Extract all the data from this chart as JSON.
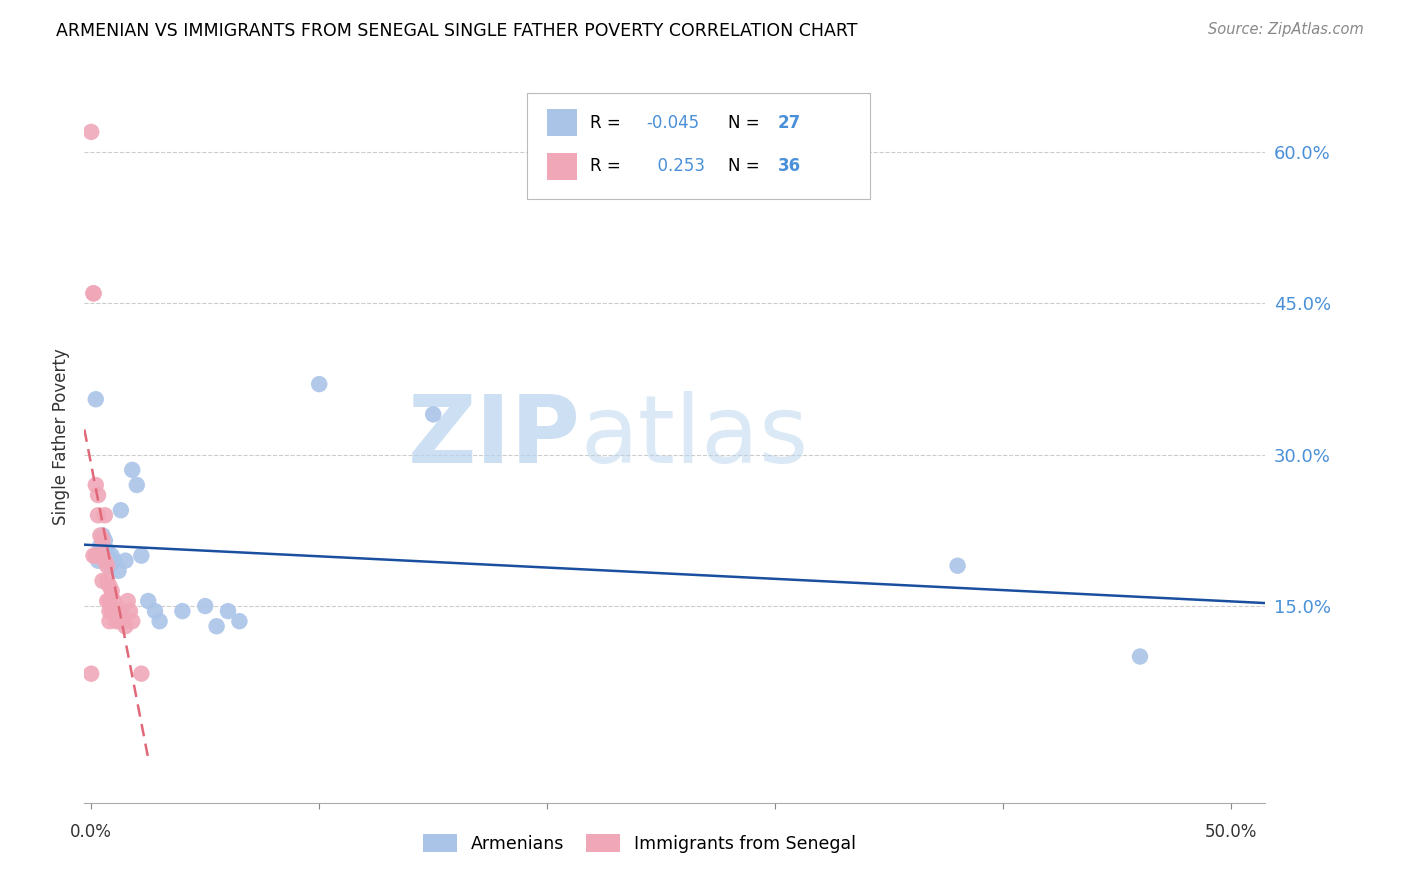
{
  "title": "ARMENIAN VS IMMIGRANTS FROM SENEGAL SINGLE FATHER POVERTY CORRELATION CHART",
  "source": "Source: ZipAtlas.com",
  "ylabel": "Single Father Poverty",
  "right_yticks": [
    "60.0%",
    "45.0%",
    "30.0%",
    "15.0%"
  ],
  "right_ytick_vals": [
    0.6,
    0.45,
    0.3,
    0.15
  ],
  "xmin": -0.003,
  "xmax": 0.515,
  "ymin": -0.045,
  "ymax": 0.68,
  "legend_r_armenian": "-0.045",
  "legend_n_armenian": "27",
  "legend_r_senegal": "0.253",
  "legend_n_senegal": "36",
  "armenian_color": "#aac4e8",
  "senegal_color": "#f0a8b8",
  "armenian_line_color": "#1a4fa0",
  "senegal_line_color": "#e06878",
  "grid_color": "#cccccc",
  "watermark_zip": "ZIP",
  "watermark_atlas": "atlas",
  "armenian_x": [
    0.002,
    0.003,
    0.004,
    0.005,
    0.006,
    0.007,
    0.008,
    0.009,
    0.01,
    0.012,
    0.013,
    0.015,
    0.018,
    0.02,
    0.022,
    0.025,
    0.028,
    0.03,
    0.04,
    0.05,
    0.055,
    0.06,
    0.065,
    0.1,
    0.15,
    0.38,
    0.46
  ],
  "armenian_y": [
    0.355,
    0.195,
    0.21,
    0.22,
    0.215,
    0.205,
    0.19,
    0.2,
    0.195,
    0.185,
    0.245,
    0.195,
    0.285,
    0.27,
    0.2,
    0.155,
    0.145,
    0.135,
    0.145,
    0.15,
    0.13,
    0.145,
    0.135,
    0.37,
    0.34,
    0.19,
    0.1
  ],
  "senegal_x": [
    0.0,
    0.0,
    0.001,
    0.001,
    0.001,
    0.002,
    0.002,
    0.003,
    0.003,
    0.004,
    0.005,
    0.005,
    0.005,
    0.006,
    0.006,
    0.007,
    0.007,
    0.007,
    0.008,
    0.008,
    0.008,
    0.008,
    0.009,
    0.009,
    0.01,
    0.01,
    0.011,
    0.012,
    0.013,
    0.013,
    0.014,
    0.015,
    0.016,
    0.017,
    0.018,
    0.022
  ],
  "senegal_y": [
    0.62,
    0.083,
    0.46,
    0.46,
    0.2,
    0.27,
    0.2,
    0.26,
    0.24,
    0.22,
    0.215,
    0.2,
    0.175,
    0.24,
    0.195,
    0.19,
    0.175,
    0.155,
    0.17,
    0.155,
    0.145,
    0.135,
    0.165,
    0.145,
    0.155,
    0.145,
    0.135,
    0.145,
    0.135,
    0.145,
    0.135,
    0.13,
    0.155,
    0.145,
    0.135,
    0.083
  ]
}
